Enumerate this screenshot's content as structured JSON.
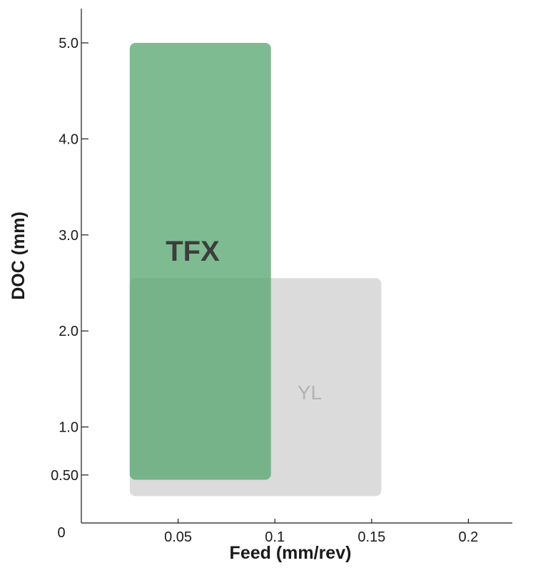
{
  "chart_data": {
    "type": "area",
    "xlabel": "Feed  (mm/rev)",
    "ylabel": "DOC  (mm)",
    "xlim": [
      0,
      0.2
    ],
    "ylim": [
      0,
      5.0
    ],
    "origin_label": "0",
    "x_ticks": [
      {
        "value": 0.05,
        "label": "0.05"
      },
      {
        "value": 0.1,
        "label": "0.1"
      },
      {
        "value": 0.15,
        "label": "0.15"
      },
      {
        "value": 0.2,
        "label": "0.2"
      }
    ],
    "y_ticks": [
      {
        "value": 0.5,
        "label": "0.50"
      },
      {
        "value": 1.0,
        "label": "1.0"
      },
      {
        "value": 2.0,
        "label": "2.0"
      },
      {
        "value": 3.0,
        "label": "3.0"
      },
      {
        "value": 4.0,
        "label": "4.0"
      },
      {
        "value": 5.0,
        "label": "5.0"
      }
    ],
    "regions": [
      {
        "name": "YL",
        "feed": [
          0.025,
          0.155
        ],
        "doc": [
          0.28,
          2.55
        ],
        "color": "#d9d9d9",
        "opacity": 0.95,
        "label_style": "light"
      },
      {
        "name": "TFX",
        "feed": [
          0.025,
          0.098
        ],
        "doc": [
          0.45,
          5.0
        ],
        "color": "#5aa872",
        "opacity": 0.78,
        "label_style": "strong"
      }
    ],
    "grid": false,
    "legend": "none"
  }
}
